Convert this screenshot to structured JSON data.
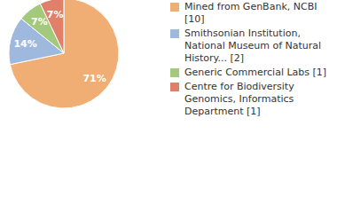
{
  "chart_data": {
    "type": "pie",
    "categories": [
      "Mined from GenBank, NCBI [10]",
      "Smithsonian Institution, National Museum of Natural History... [2]",
      "Generic Commercial Labs [1]",
      "Centre for Biodiversity Genomics, Informatics Department [1]"
    ],
    "values": [
      71,
      14,
      7,
      7
    ],
    "value_labels": [
      "71%",
      "14%",
      "7%",
      "7%"
    ],
    "colors": [
      "#f0ad74",
      "#9fb9de",
      "#a3c97d",
      "#e0806a"
    ],
    "data_labels": true,
    "legend": "right"
  }
}
